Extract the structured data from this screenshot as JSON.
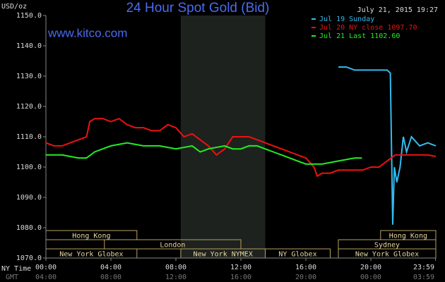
{
  "chart_data": {
    "type": "line",
    "title": "24 Hour Spot Gold (Bid)",
    "watermark": "www.kitco.com",
    "timestamp": "July 21, 2015 19:27",
    "y_label": "USD/oz",
    "x_label": "NY Time",
    "x2_label": "GMT",
    "xlim": [
      0,
      24
    ],
    "xticks": [
      {
        "value": 0,
        "label": "00:00"
      },
      {
        "value": 4,
        "label": "04:00"
      },
      {
        "value": 8,
        "label": "08:00"
      },
      {
        "value": 12,
        "label": "12:00"
      },
      {
        "value": 16,
        "label": "16:00"
      },
      {
        "value": 20,
        "label": "20:00"
      },
      {
        "value": 23.98,
        "label": "23:59"
      }
    ],
    "gmt_labels": [
      "04:00",
      "08:00",
      "12:00",
      "16:00",
      "20:00",
      "00:00",
      "03:59"
    ],
    "ylim": [
      1070,
      1150
    ],
    "yticks": [
      {
        "value": 1070,
        "label": "1070.0"
      },
      {
        "value": 1080,
        "label": "1080.0"
      },
      {
        "value": 1090,
        "label": "1090.0"
      },
      {
        "value": 1100,
        "label": "1100.0"
      },
      {
        "value": 1110,
        "label": "1110.0"
      },
      {
        "value": 1120,
        "label": "1120.0"
      },
      {
        "value": 1130,
        "label": "1130.0"
      },
      {
        "value": 1140,
        "label": "1140.0"
      },
      {
        "value": 1150,
        "label": "1150.0"
      }
    ],
    "series": [
      {
        "name": "Jul 19 Sunday",
        "color": "#33bbee",
        "x": [
          18,
          18.5,
          19,
          19.5,
          20,
          20.5,
          21,
          21.2,
          21.35,
          21.45,
          21.6,
          21.8,
          22,
          22.2,
          22.5,
          23,
          23.5,
          24
        ],
        "values": [
          1133,
          1133,
          1132,
          1132,
          1132,
          1132,
          1132,
          1131,
          1081,
          1100,
          1095,
          1100,
          1110,
          1105,
          1110,
          1107,
          1108,
          1107
        ]
      },
      {
        "name": "Jul 20 NY close 1097.70",
        "color": "#ee1111",
        "x": [
          0,
          0.5,
          1,
          1.5,
          2,
          2.5,
          2.7,
          3,
          3.5,
          4,
          4.5,
          5,
          5.5,
          6,
          6.5,
          7,
          7.5,
          8,
          8.5,
          9,
          9.5,
          10,
          10.5,
          11,
          11.5,
          12,
          12.5,
          13,
          13.5,
          14,
          14.5,
          15,
          15.5,
          16,
          16.5,
          16.7,
          17,
          17.5,
          18,
          18.5,
          19,
          19.5,
          20,
          20.5,
          21,
          21.5,
          22,
          22.5,
          23,
          23.5,
          24
        ],
        "values": [
          1108,
          1107,
          1107,
          1108,
          1109,
          1110,
          1115,
          1116,
          1116,
          1115,
          1116,
          1114,
          1113,
          1113,
          1112,
          1112,
          1114,
          1113,
          1110,
          1111,
          1109,
          1107,
          1104,
          1106,
          1110,
          1110,
          1110,
          1109,
          1108,
          1107,
          1106,
          1105,
          1104,
          1103,
          1100,
          1097,
          1098,
          1098,
          1099,
          1099,
          1099,
          1099,
          1100,
          1100,
          1102,
          1104,
          1104,
          1104,
          1104,
          1104,
          1103.5
        ]
      },
      {
        "name": "Jul 21 Last 1102.60",
        "color": "#22ee22",
        "x": [
          0,
          1,
          2,
          2.5,
          3,
          4,
          5,
          6,
          7,
          8,
          9,
          9.5,
          10,
          11,
          11.5,
          12,
          12.5,
          13,
          14,
          15,
          15.5,
          16,
          16.5,
          17,
          18,
          19,
          19.45
        ],
        "values": [
          1104,
          1104,
          1103,
          1103,
          1105,
          1107,
          1108,
          1107,
          1107,
          1106,
          1107,
          1105,
          1106,
          1107,
          1106,
          1106,
          1107,
          1107,
          1105,
          1103,
          1102,
          1101,
          1101,
          1101,
          1102,
          1103,
          1103
        ]
      }
    ],
    "sessions": [
      {
        "name": "Hong Kong",
        "row": 0,
        "start": 0,
        "end": 5.6
      },
      {
        "name": "Hong Kong",
        "row": 0,
        "start": 20.6,
        "end": 24
      },
      {
        "name": "London",
        "row": 1,
        "start": 3.6,
        "end": 12
      },
      {
        "name": "Sydney",
        "row": 1,
        "start": 18,
        "end": 24
      },
      {
        "name": "New York Globex",
        "row": 2,
        "start": 0,
        "end": 5.6
      },
      {
        "name": "New York NYMEX",
        "row": 2,
        "start": 8.3,
        "end": 13.5
      },
      {
        "name": "NY Globex",
        "row": 2,
        "start": 13.5,
        "end": 17.5
      },
      {
        "name": "New York Globex",
        "row": 2,
        "start": 18,
        "end": 24
      }
    ],
    "shaded": {
      "start": 8.3,
      "end": 13.5
    }
  }
}
